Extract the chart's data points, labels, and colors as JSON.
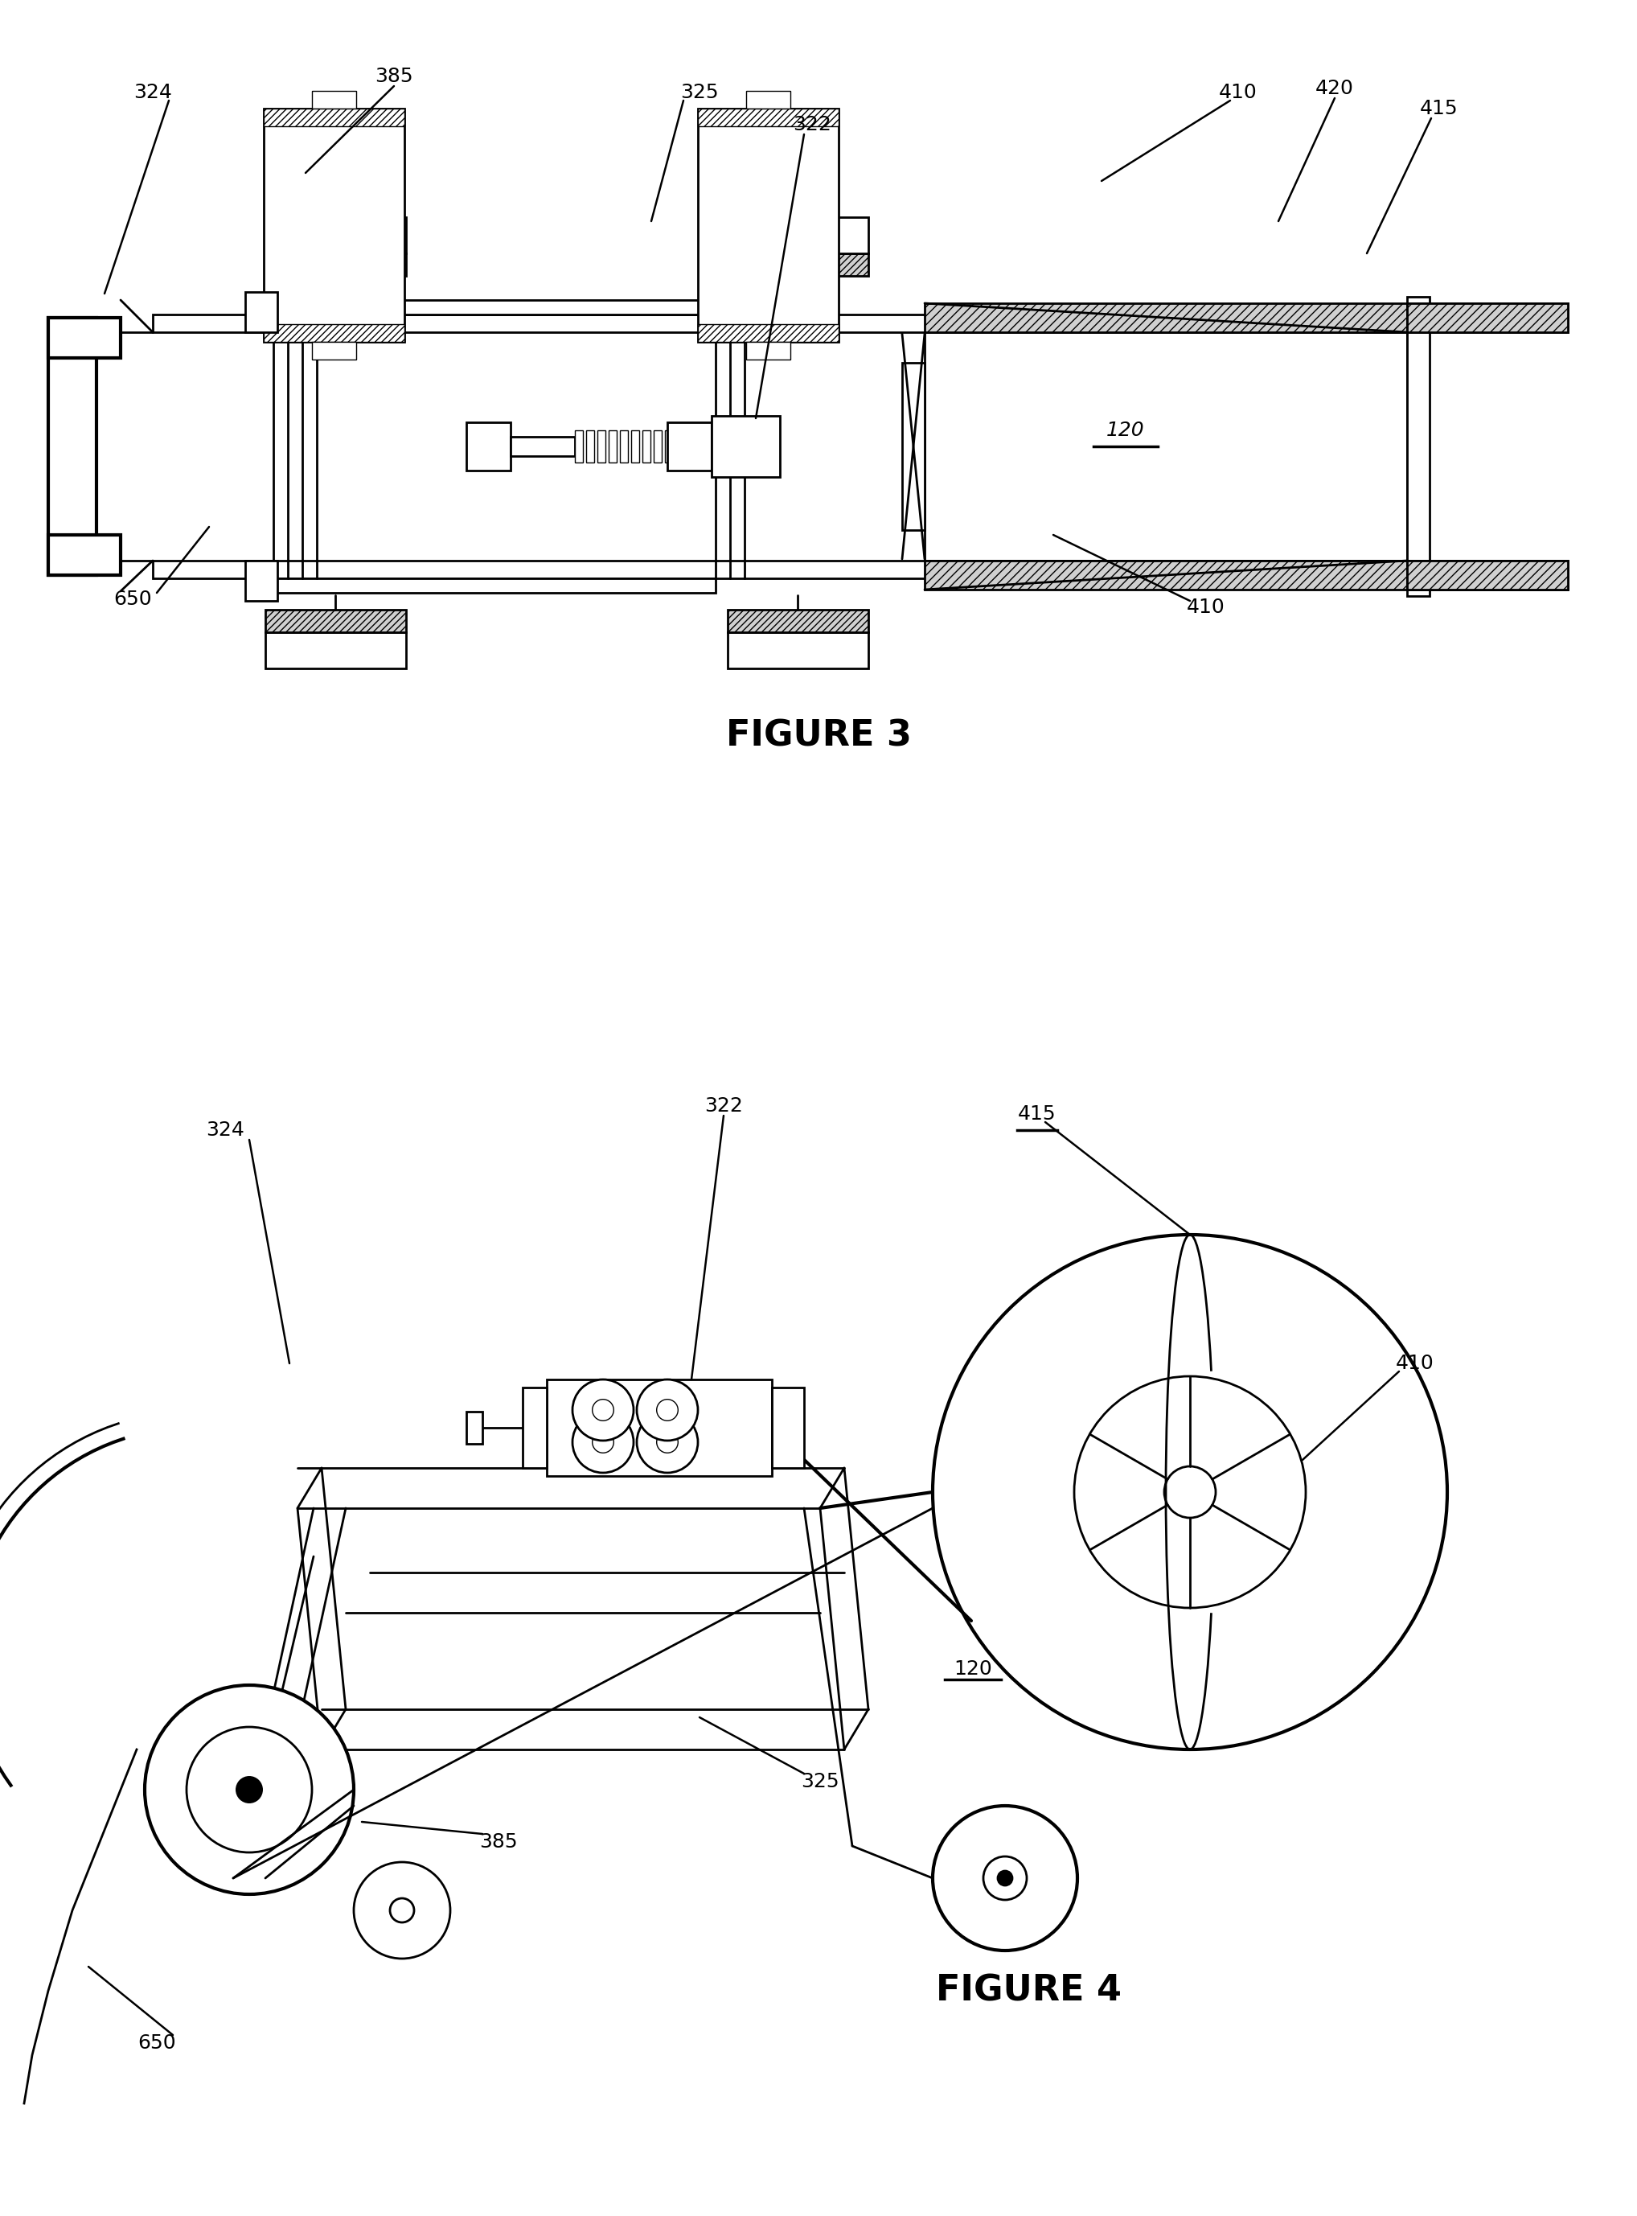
{
  "fig3_title": "FIGURE 3",
  "fig4_title": "FIGURE 4",
  "background": "#ffffff",
  "line_color": "#000000",
  "lw_main": 2.0,
  "lw_thick": 3.0,
  "lw_thin": 1.0,
  "label_fontsize": 18,
  "title_fontsize": 32
}
